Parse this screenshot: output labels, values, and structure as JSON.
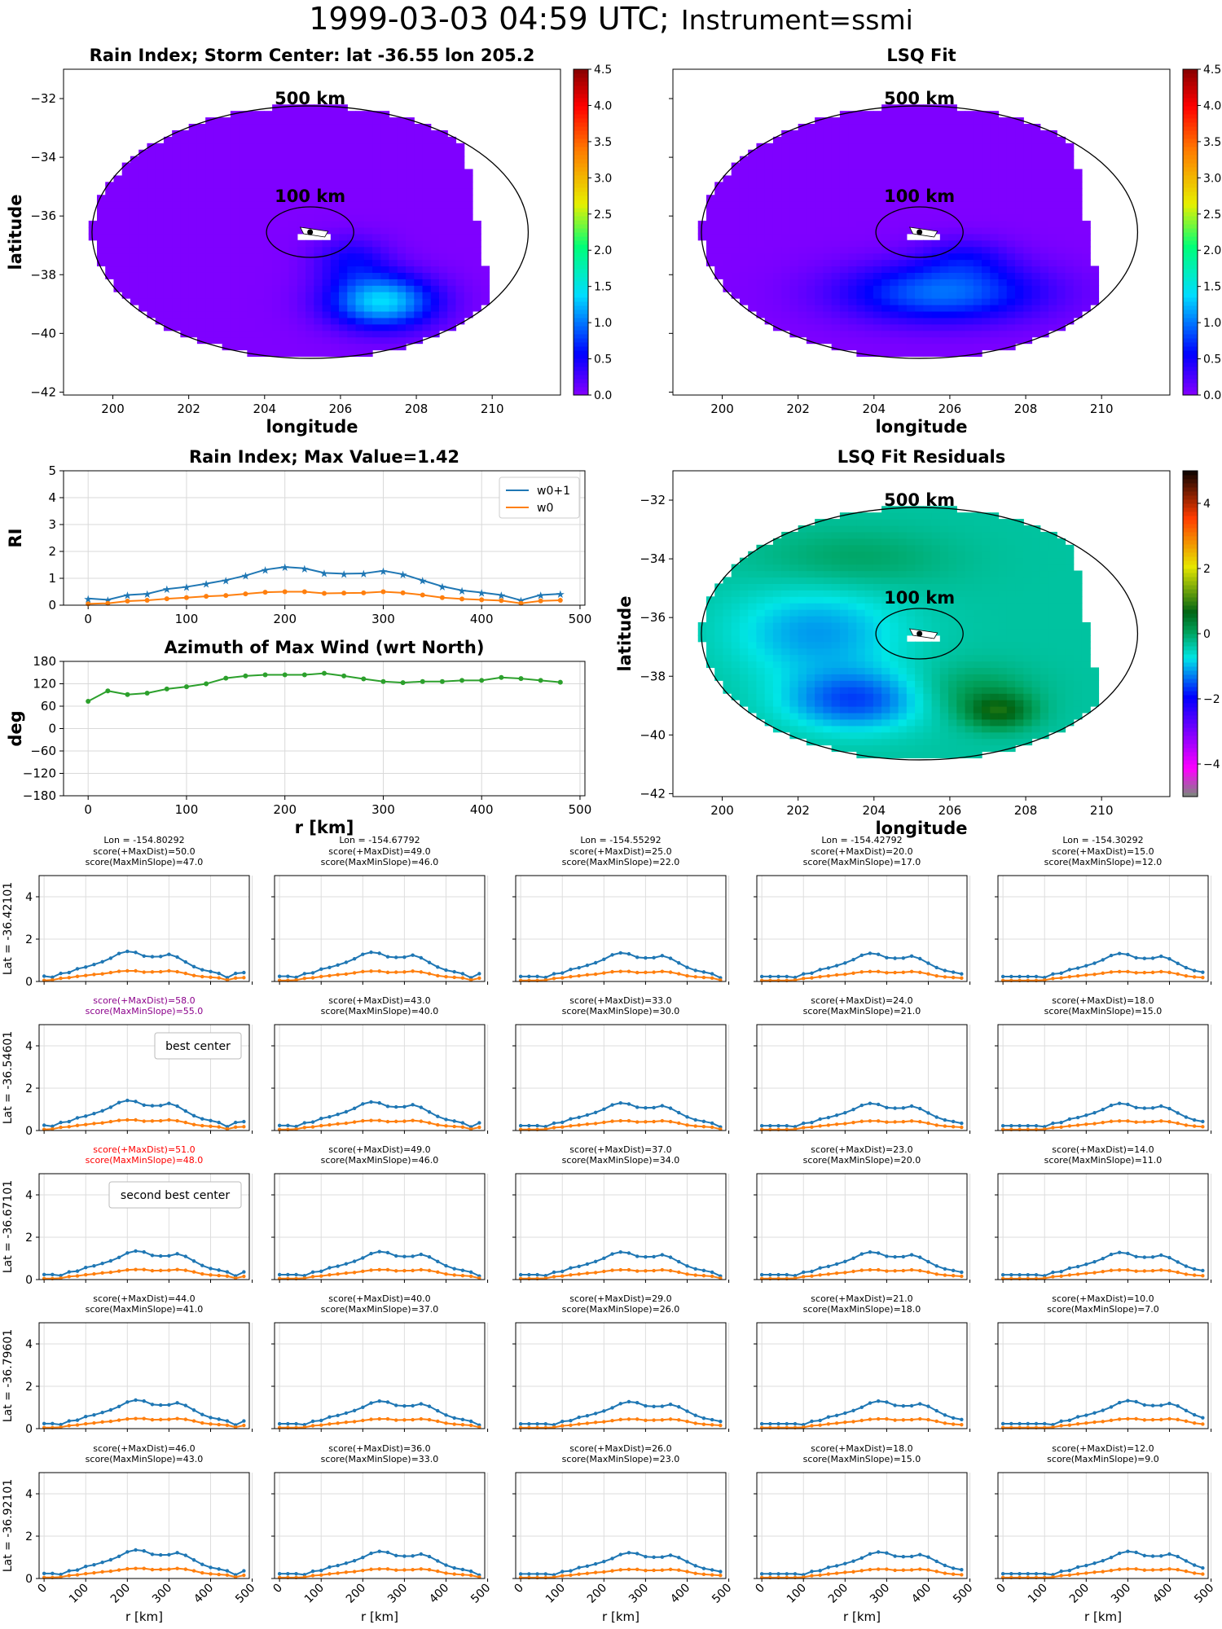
{
  "suptitle": {
    "main": "1999-03-03 04:59 UTC;",
    "instrument": "Instrument=ssmi"
  },
  "maps": [
    {
      "id": "rain-index-map",
      "title": "Rain Index; Storm Center: lat -36.55 lon 205.2",
      "xlabel": "longitude",
      "ylabel": "latitude",
      "xticks": [
        200,
        202,
        204,
        206,
        208,
        210
      ],
      "yticks": [
        -32,
        -34,
        -36,
        -38,
        -40,
        -42
      ],
      "ring_labels": [
        "500 km",
        "100 km"
      ],
      "colorbar": {
        "ticks": [
          "0.0",
          "0.5",
          "1.0",
          "1.5",
          "2.0",
          "2.5",
          "3.0",
          "3.5",
          "4.0",
          "4.5"
        ],
        "colormap": "rainbow"
      },
      "field": "rain"
    },
    {
      "id": "lsq-fit-map",
      "title": "LSQ Fit",
      "xlabel": "longitude",
      "ylabel": "",
      "xticks": [
        200,
        202,
        204,
        206,
        208,
        210
      ],
      "yticks": [],
      "ring_labels": [
        "500 km",
        "100 km"
      ],
      "colorbar": {
        "ticks": [
          "0.0",
          "0.5",
          "1.0",
          "1.5",
          "2.0",
          "2.5",
          "3.0",
          "3.5",
          "4.0",
          "4.5"
        ],
        "colormap": "rainbow"
      },
      "field": "fit"
    },
    {
      "id": "lsq-residuals-map",
      "title": "LSQ Fit Residuals",
      "xlabel": "longitude",
      "ylabel": "latitude",
      "xticks": [
        200,
        202,
        204,
        206,
        208,
        210
      ],
      "yticks": [
        -32,
        -34,
        -36,
        -38,
        -40,
        -42
      ],
      "ring_labels": [
        "500 km",
        "100 km"
      ],
      "colorbar": {
        "ticks": [
          "4",
          "2",
          "0",
          "−2",
          "−4"
        ],
        "colormap": "diverging"
      },
      "field": "resid"
    }
  ],
  "chart_data": [
    {
      "type": "line",
      "id": "rain-index-profile",
      "title": "Rain Index; Max Value=1.42",
      "xlabel": "",
      "ylabel": "RI",
      "x": [
        0,
        20,
        40,
        60,
        80,
        100,
        120,
        140,
        160,
        180,
        200,
        220,
        240,
        260,
        280,
        300,
        320,
        340,
        360,
        380,
        400,
        420,
        440,
        460,
        480
      ],
      "xticks": [
        "0",
        "100",
        "200",
        "300",
        "400",
        "500"
      ],
      "yticks": [
        "0",
        "1",
        "2",
        "3",
        "4",
        "5"
      ],
      "ylim": [
        0,
        5
      ],
      "legend": "top-right",
      "series": [
        {
          "name": "w0+1",
          "color": "#1f77b4",
          "marker": "star",
          "values": [
            0.25,
            0.2,
            0.38,
            0.42,
            0.6,
            0.68,
            0.8,
            0.93,
            1.1,
            1.32,
            1.42,
            1.37,
            1.2,
            1.17,
            1.18,
            1.28,
            1.15,
            0.92,
            0.7,
            0.55,
            0.47,
            0.38,
            0.18,
            0.38,
            0.42
          ]
        },
        {
          "name": "w0",
          "color": "#ff7f0e",
          "marker": "dot",
          "values": [
            0.05,
            0.07,
            0.15,
            0.18,
            0.24,
            0.28,
            0.33,
            0.36,
            0.42,
            0.48,
            0.5,
            0.5,
            0.44,
            0.45,
            0.46,
            0.5,
            0.46,
            0.38,
            0.28,
            0.23,
            0.2,
            0.17,
            0.07,
            0.16,
            0.18
          ]
        }
      ]
    },
    {
      "type": "line",
      "id": "azimuth-profile",
      "title": "Azimuth of Max Wind (wrt North)",
      "xlabel": "r [km]",
      "ylabel": "deg",
      "x": [
        0,
        20,
        40,
        60,
        80,
        100,
        120,
        140,
        160,
        180,
        200,
        220,
        240,
        260,
        280,
        300,
        320,
        340,
        360,
        380,
        400,
        420,
        440,
        460,
        480
      ],
      "xticks": [
        "0",
        "100",
        "200",
        "300",
        "400",
        "500"
      ],
      "yticks": [
        "180",
        "120",
        "60",
        "0",
        "−60",
        "−120",
        "−180"
      ],
      "ylim": [
        -180,
        180
      ],
      "series": [
        {
          "color": "#2ca02c",
          "values": [
            73,
            101,
            91,
            95,
            106,
            112,
            120,
            135,
            141,
            144,
            144,
            144,
            148,
            141,
            133,
            126,
            123,
            126,
            126,
            129,
            129,
            137,
            134,
            129,
            124
          ]
        }
      ]
    }
  ],
  "grid": {
    "rows": [
      {
        "lat_label": "Lat = -36.42101"
      },
      {
        "lat_label": "Lat = -36.54601"
      },
      {
        "lat_label": "Lat = -36.67101"
      },
      {
        "lat_label": "Lat = -36.79601"
      },
      {
        "lat_label": "Lat = -36.92101"
      }
    ],
    "col_lons": [
      "Lon = -154.80292",
      "Lon = -154.67792",
      "Lon = -154.55292",
      "Lon = -154.42792",
      "Lon = -154.30292"
    ],
    "yticks": [
      "0",
      "2",
      "4"
    ],
    "xticks": [
      "0",
      "100",
      "200",
      "300",
      "400",
      "500"
    ],
    "xlabel": "r [km]",
    "titles": [
      [
        [
          "score(+MaxDist)=50.0",
          "score(MaxMinSlope)=47.0"
        ],
        [
          "score(+MaxDist)=49.0",
          "score(MaxMinSlope)=46.0"
        ],
        [
          "score(+MaxDist)=25.0",
          "score(MaxMinSlope)=22.0"
        ],
        [
          "score(+MaxDist)=20.0",
          "score(MaxMinSlope)=17.0"
        ],
        [
          "score(+MaxDist)=15.0",
          "score(MaxMinSlope)=12.0"
        ]
      ],
      [
        [
          "score(+MaxDist)=58.0",
          "score(MaxMinSlope)=55.0"
        ],
        [
          "score(+MaxDist)=43.0",
          "score(MaxMinSlope)=40.0"
        ],
        [
          "score(+MaxDist)=33.0",
          "score(MaxMinSlope)=30.0"
        ],
        [
          "score(+MaxDist)=24.0",
          "score(MaxMinSlope)=21.0"
        ],
        [
          "score(+MaxDist)=18.0",
          "score(MaxMinSlope)=15.0"
        ]
      ],
      [
        [
          "score(+MaxDist)=51.0",
          "score(MaxMinSlope)=48.0"
        ],
        [
          "score(+MaxDist)=49.0",
          "score(MaxMinSlope)=46.0"
        ],
        [
          "score(+MaxDist)=37.0",
          "score(MaxMinSlope)=34.0"
        ],
        [
          "score(+MaxDist)=23.0",
          "score(MaxMinSlope)=20.0"
        ],
        [
          "score(+MaxDist)=14.0",
          "score(MaxMinSlope)=11.0"
        ]
      ],
      [
        [
          "score(+MaxDist)=44.0",
          "score(MaxMinSlope)=41.0"
        ],
        [
          "score(+MaxDist)=40.0",
          "score(MaxMinSlope)=37.0"
        ],
        [
          "score(+MaxDist)=29.0",
          "score(MaxMinSlope)=26.0"
        ],
        [
          "score(+MaxDist)=21.0",
          "score(MaxMinSlope)=18.0"
        ],
        [
          "score(+MaxDist)=10.0",
          "score(MaxMinSlope)=7.0"
        ]
      ],
      [
        [
          "score(+MaxDist)=46.0",
          "score(MaxMinSlope)=43.0"
        ],
        [
          "score(+MaxDist)=36.0",
          "score(MaxMinSlope)=33.0"
        ],
        [
          "score(+MaxDist)=26.0",
          "score(MaxMinSlope)=23.0"
        ],
        [
          "score(+MaxDist)=18.0",
          "score(MaxMinSlope)=15.0"
        ],
        [
          "score(+MaxDist)=12.0",
          "score(MaxMinSlope)=9.0"
        ]
      ]
    ],
    "highlights": [
      {
        "row": 1,
        "col": 0,
        "color": "#8b008b",
        "annotation": "best center"
      },
      {
        "row": 2,
        "col": 0,
        "color": "#ff0000",
        "annotation": "second best center"
      }
    ],
    "profile_peaks": [
      [
        1.42,
        1.38,
        1.35,
        1.33,
        1.32
      ],
      [
        1.42,
        1.35,
        1.3,
        1.28,
        1.28
      ],
      [
        1.35,
        1.32,
        1.3,
        1.3,
        1.28
      ],
      [
        1.35,
        1.3,
        1.27,
        1.3,
        1.32
      ],
      [
        1.35,
        1.28,
        1.22,
        1.25,
        1.28
      ]
    ]
  }
}
